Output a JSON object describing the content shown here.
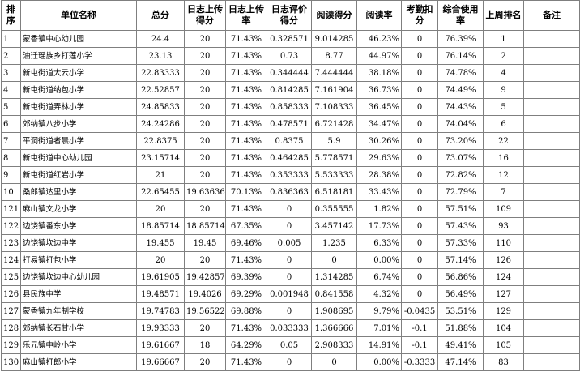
{
  "headers": [
    "排序",
    "单位名称",
    "总分",
    "日志上传得分",
    "日志上传率",
    "日志评价得分",
    "阅读得分",
    "阅读率",
    "考勤扣分",
    "综合使用率",
    "上周排名",
    "备注"
  ],
  "rows": [
    [
      "1",
      "蒙香镇中心幼儿园",
      "24.4",
      "20",
      "71.43%",
      "0.328571",
      "9.014285",
      "46.23%",
      "0",
      "76.39%",
      "1",
      ""
    ],
    [
      "2",
      "油迁瑶族乡打莲小学",
      "23.13",
      "20",
      "71.43%",
      "0.73",
      "8.77",
      "44.97%",
      "0",
      "76.14%",
      "2",
      ""
    ],
    [
      "3",
      "新屯街道大云小学",
      "22.83333",
      "20",
      "71.43%",
      "0.344444",
      "7.444444",
      "38.18%",
      "0",
      "74.78%",
      "4",
      ""
    ],
    [
      "4",
      "新屯街道纳包小学",
      "22.52857",
      "20",
      "71.43%",
      "0.814285",
      "7.161904",
      "36.73%",
      "0",
      "74.49%",
      "9",
      ""
    ],
    [
      "5",
      "新屯街道弄林小学",
      "24.85833",
      "20",
      "71.43%",
      "0.858333",
      "7.108333",
      "36.45%",
      "0",
      "74.43%",
      "5",
      ""
    ],
    [
      "6",
      "郊纳镇八步小学",
      "24.24286",
      "20",
      "71.43%",
      "0.478571",
      "6.721428",
      "34.47%",
      "0",
      "74.04%",
      "6",
      ""
    ],
    [
      "7",
      "平洞街道者晨小学",
      "22.8375",
      "20",
      "71.43%",
      "0.8375",
      "5.9",
      "30.26%",
      "0",
      "73.20%",
      "22",
      ""
    ],
    [
      "8",
      "新屯街道中心幼儿园",
      "23.15714",
      "20",
      "71.43%",
      "0.464285",
      "5.778571",
      "29.63%",
      "0",
      "73.07%",
      "16",
      ""
    ],
    [
      "9",
      "新屯街道红岩小学",
      "21",
      "20",
      "71.43%",
      "0.353333",
      "5.533333",
      "28.38%",
      "0",
      "72.82%",
      "12",
      ""
    ],
    [
      "10",
      "桑郎镇达里小学",
      "22.65455",
      "19.63636",
      "70.13%",
      "0.836363",
      "6.518181",
      "33.43%",
      "0",
      "72.79%",
      "7",
      ""
    ],
    [
      "121",
      "麻山镇文龙小学",
      "20",
      "20",
      "71.43%",
      "0",
      "0.355555",
      "1.82%",
      "0",
      "57.51%",
      "109",
      ""
    ],
    [
      "122",
      "边饶镇番东小学",
      "18.85714",
      "18.85714",
      "67.35%",
      "0",
      "3.457142",
      "17.73%",
      "0",
      "57.43%",
      "93",
      ""
    ],
    [
      "123",
      "边饶镇坎边中学",
      "19.455",
      "19.45",
      "69.46%",
      "0.005",
      "1.235",
      "6.33%",
      "0",
      "57.33%",
      "110",
      ""
    ],
    [
      "124",
      "打易镇打包小学",
      "20",
      "20",
      "71.43%",
      "0",
      "0",
      "0.00%",
      "0",
      "57.14%",
      "126",
      ""
    ],
    [
      "125",
      "边饶镇坎边中心幼儿园",
      "19.61905",
      "19.42857",
      "69.39%",
      "0",
      "1.314285",
      "6.74%",
      "0",
      "56.86%",
      "124",
      ""
    ],
    [
      "126",
      "县民族中学",
      "19.48571",
      "19.4026",
      "69.29%",
      "0.001948",
      "0.841558",
      "4.32%",
      "0",
      "56.49%",
      "127",
      ""
    ],
    [
      "127",
      "蒙香镇九年制学校",
      "19.74783",
      "19.56522",
      "69.88%",
      "0",
      "1.908695",
      "9.79%",
      "-0.0435",
      "53.51%",
      "129",
      ""
    ],
    [
      "128",
      "郊纳镇长石甘小学",
      "19.93333",
      "20",
      "71.43%",
      "0.033333",
      "1.366666",
      "7.01%",
      "-0.1",
      "51.88%",
      "104",
      ""
    ],
    [
      "129",
      "乐元镇中岭小学",
      "19.61667",
      "18",
      "64.29%",
      "0.05",
      "2.908333",
      "14.91%",
      "-0.1",
      "49.41%",
      "105",
      ""
    ],
    [
      "130",
      "麻山镇打郎小学",
      "19.66667",
      "20",
      "71.43%",
      "0",
      "0",
      "0.00%",
      "-0.3333",
      "47.14%",
      "83",
      ""
    ]
  ]
}
